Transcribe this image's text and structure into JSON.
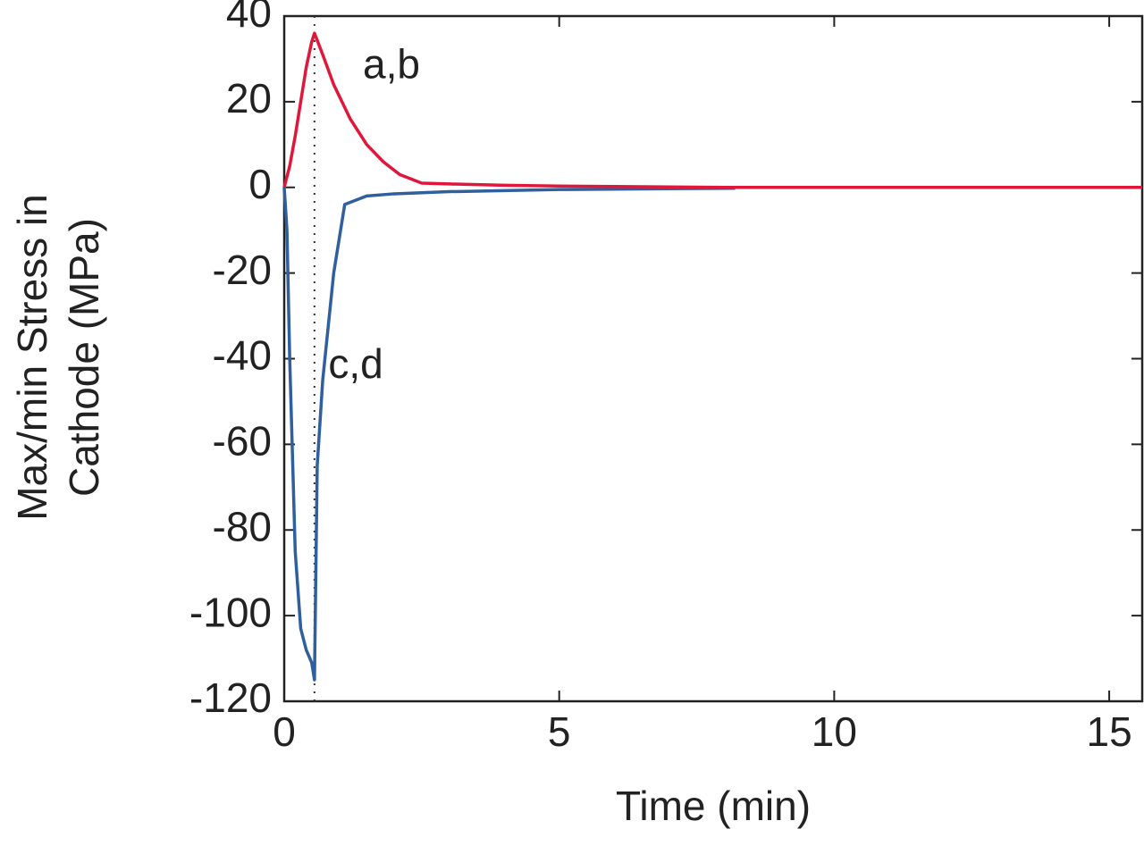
{
  "chart_data": {
    "type": "line",
    "xlabel": "Time (min)",
    "ylabel": [
      "Max/min Stress in",
      "Cathode (MPa)"
    ],
    "xlim": [
      0,
      15.6
    ],
    "xticks": [
      0,
      5,
      10,
      15
    ],
    "ylim": [
      -120,
      40
    ],
    "yticks": [
      -120,
      -100,
      -80,
      -60,
      -40,
      -20,
      0,
      20,
      40
    ],
    "reference_x": 0.55,
    "series": [
      {
        "color": "#2f5f9e",
        "x": [
          0,
          0.05,
          0.1,
          0.2,
          0.3,
          0.4,
          0.5,
          0.55,
          0.6,
          0.7,
          0.9,
          1.1,
          1.5,
          2,
          3,
          5,
          8.2
        ],
        "values": [
          0,
          -10,
          -40,
          -85,
          -103,
          -108,
          -111,
          -115,
          -65,
          -45,
          -20,
          -4,
          -2,
          -1.5,
          -1,
          -0.5,
          -0.2
        ]
      },
      {
        "color": "#e0173a",
        "x": [
          0,
          0.1,
          0.2,
          0.3,
          0.4,
          0.5,
          0.55,
          0.7,
          0.9,
          1.2,
          1.5,
          1.8,
          2.1,
          2.5,
          3,
          4,
          5,
          6,
          8,
          10,
          15.6
        ],
        "values": [
          0,
          5,
          12,
          20,
          28,
          34,
          36,
          31,
          24,
          16,
          10,
          6,
          3,
          1,
          0.8,
          0.5,
          0.3,
          0.2,
          0,
          0,
          0
        ]
      }
    ],
    "annotations": [
      {
        "text": "a,b",
        "x": 1.95,
        "y": 28
      },
      {
        "text": "c,d",
        "x": 1.3,
        "y": -42
      }
    ]
  }
}
